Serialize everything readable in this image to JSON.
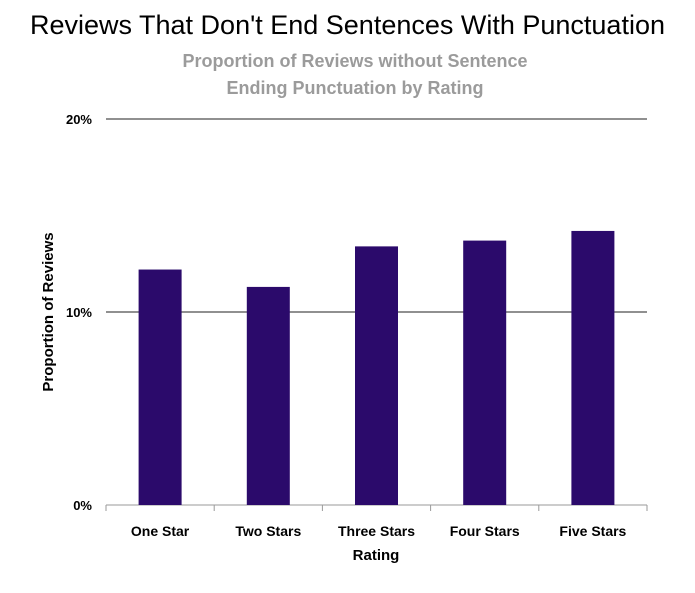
{
  "title": "Reviews That Don't End Sentences With Punctuation",
  "subtitle": "Proportion of Reviews without Sentence Ending Punctuation by Rating",
  "chart_data": {
    "type": "bar",
    "categories": [
      "One Star",
      "Two Stars",
      "Three Stars",
      "Four Stars",
      "Five Stars"
    ],
    "values": [
      12.2,
      11.3,
      13.4,
      13.7,
      14.2
    ],
    "unit": "%",
    "xlabel": "Rating",
    "ylabel": "Proportion of Reviews",
    "ylim": [
      0,
      20
    ],
    "yticks": [
      "0%",
      "10%",
      "20%"
    ],
    "grid": true,
    "legend": "none",
    "bar_color": "#2b0a6b"
  }
}
